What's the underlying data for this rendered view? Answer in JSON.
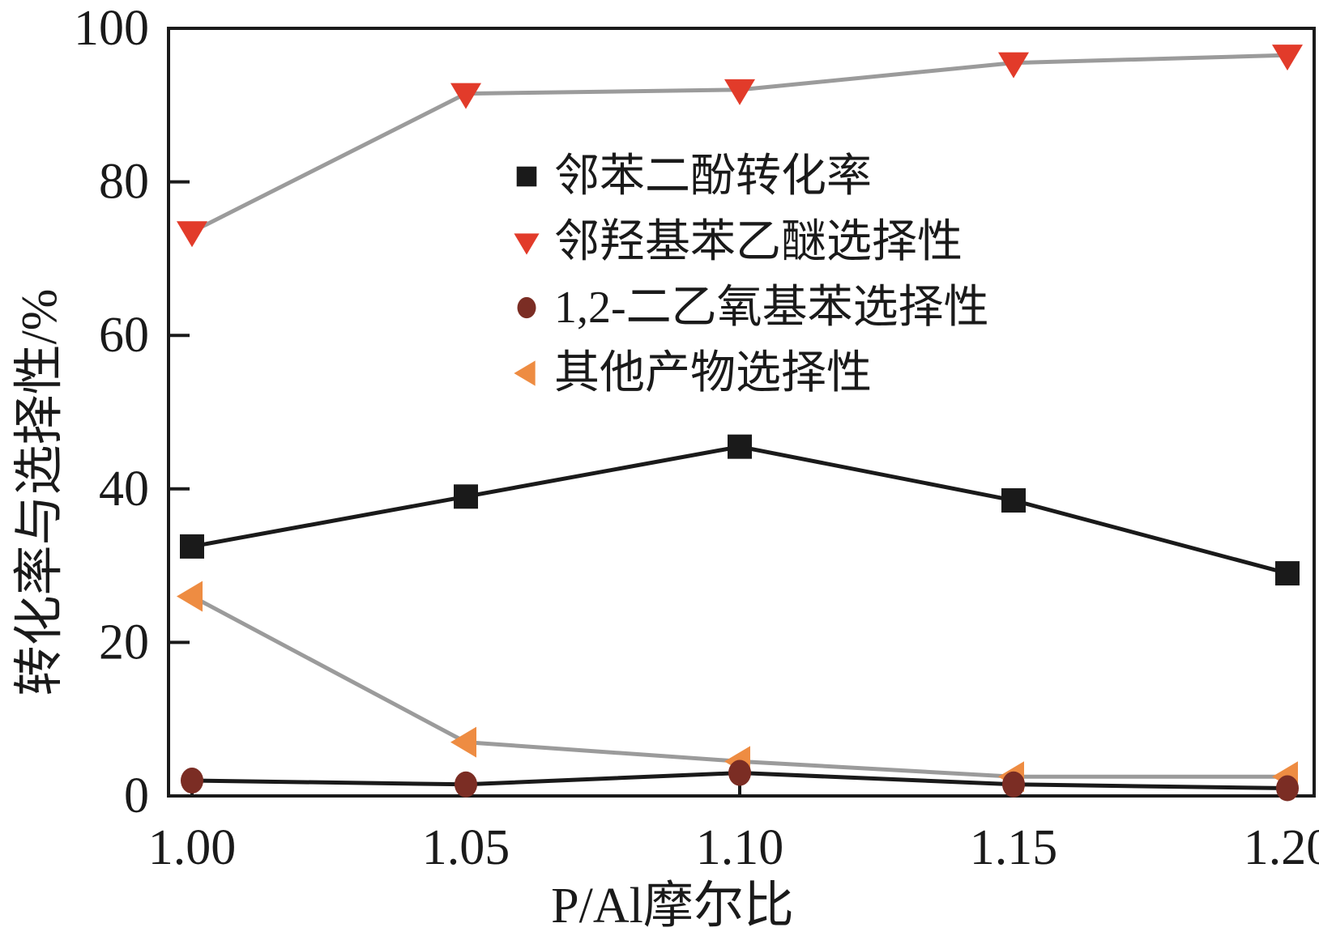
{
  "chart_data": {
    "type": "line",
    "title": "",
    "xlabel": "P/Al摩尔比",
    "ylabel": "转化率与选择性/%",
    "x": [
      1.0,
      1.05,
      1.1,
      1.15,
      1.2
    ],
    "x_tick_labels": [
      "1.00",
      "1.05",
      "1.10",
      "1.15",
      "1.20"
    ],
    "y_ticks": [
      0,
      20,
      40,
      60,
      80,
      100
    ],
    "ylim": [
      0,
      100
    ],
    "grid": false,
    "legend_position": "upper-center-inside",
    "colors": {
      "axis": "#1a1a1a",
      "black_line": "#1a1a1a",
      "gray_line": "#9b9b9b",
      "red": "#e23b2a",
      "maroon": "#7b2d24",
      "orange": "#ee8c42",
      "background": "#ffffff"
    },
    "series": [
      {
        "name": "邻苯二酚转化率",
        "marker": "square",
        "marker_color": "#1a1a1a",
        "line_color": "#1a1a1a",
        "values": [
          32.5,
          39,
          45.5,
          38.5,
          29
        ]
      },
      {
        "name": "邻羟基苯乙醚选择性",
        "marker": "triangle-down",
        "marker_color": "#e23b2a",
        "line_color": "#9b9b9b",
        "values": [
          73.5,
          91.5,
          92,
          95.5,
          96.5
        ]
      },
      {
        "name": "1,2-二乙氧基苯选择性",
        "marker": "circle",
        "marker_color": "#7b2d24",
        "line_color": "#1a1a1a",
        "values": [
          2,
          1.5,
          3,
          1.5,
          1
        ]
      },
      {
        "name": "其他产物选择性",
        "marker": "triangle-left",
        "marker_color": "#ee8c42",
        "line_color": "#9b9b9b",
        "values": [
          26,
          7,
          4.5,
          2.5,
          2.5
        ]
      }
    ]
  }
}
